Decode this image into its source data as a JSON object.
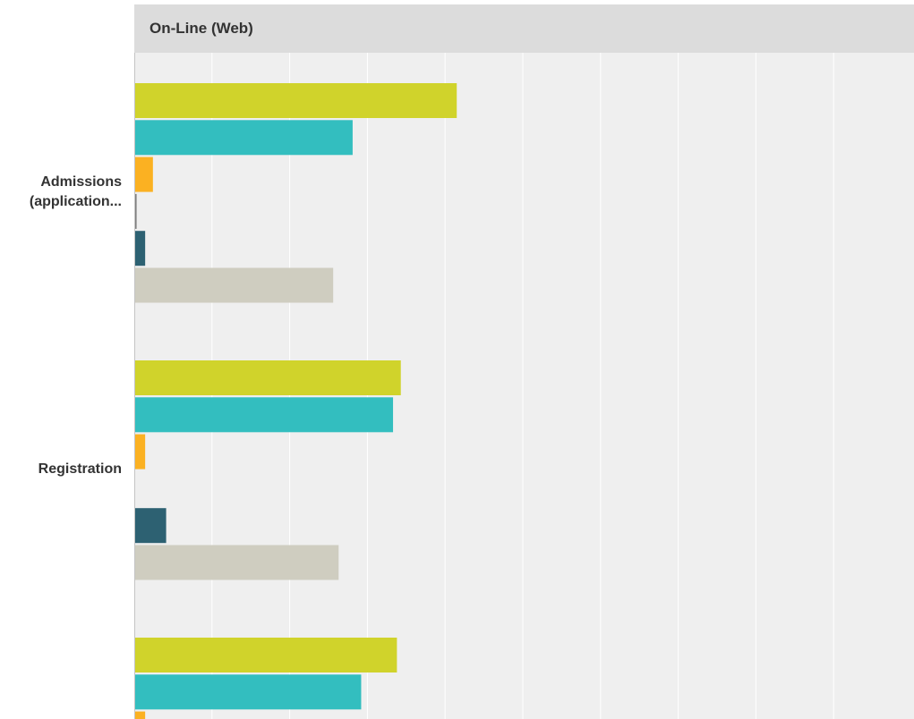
{
  "chart_data": {
    "type": "bar",
    "orientation": "horizontal",
    "title": "On-Line (Web)",
    "categories": [
      "Admissions (application...",
      "Registration",
      ""
    ],
    "category_label_lines": [
      [
        "Admissions",
        "(application..."
      ],
      [
        "Registration"
      ],
      []
    ],
    "series": [
      {
        "color": "#d0d32b",
        "values": [
          41.5,
          34.3,
          33.8
        ]
      },
      {
        "color": "#33bebf",
        "values": [
          28.1,
          33.3,
          29.2
        ]
      },
      {
        "color": "#fbb122",
        "values": [
          2.4,
          1.4,
          1.4
        ]
      },
      {
        "color": "#808080",
        "values": [
          0.3,
          0,
          null
        ]
      },
      {
        "color": "#2d6172",
        "values": [
          1.4,
          4.1,
          null
        ]
      },
      {
        "color": "#cfcdc0",
        "values": [
          25.6,
          26.3,
          null
        ]
      }
    ],
    "xlim": [
      0,
      100
    ],
    "grid": true,
    "legend": "none"
  }
}
